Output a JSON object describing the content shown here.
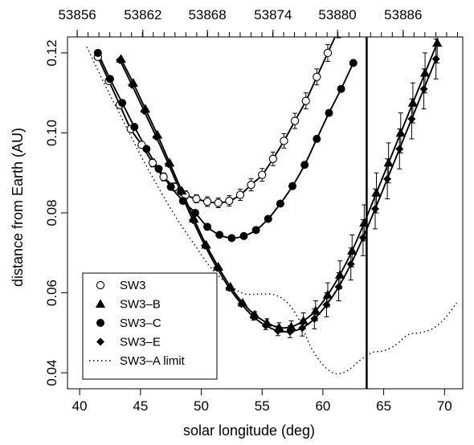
{
  "chart_data": {
    "type": "line",
    "xlabel": "solar longitude (deg)",
    "ylabel": "distance from Earth (AU)",
    "xlim": [
      39,
      71.5
    ],
    "ylim": [
      0.036,
      0.124
    ],
    "x_ticks": [
      40,
      45,
      50,
      55,
      60,
      65,
      70
    ],
    "y_ticks": [
      0.04,
      0.06,
      0.08,
      0.1,
      0.12
    ],
    "y_tick_labels": [
      "0.04",
      "0.06",
      "0.08",
      "0.10",
      "0.12"
    ],
    "top_axis": {
      "label_values": [
        53856,
        53862,
        53868,
        53874,
        53880,
        53886
      ],
      "labels": [
        "53856",
        "53862",
        "53868",
        "53874",
        "53880",
        "53886"
      ],
      "label_solar_longitudes": [
        39.8,
        45.2,
        50.5,
        55.9,
        61.2,
        66.6
      ]
    },
    "vertical_line_x": 63.6,
    "legend_position": "bottom-left",
    "series": [
      {
        "name": "SW3",
        "marker": "open-circle",
        "line": "solid",
        "x": [
          41.5,
          42.4,
          43.3,
          44.2,
          45.1,
          46.0,
          46.9,
          47.8,
          48.7,
          49.6,
          50.5,
          51.4,
          52.3,
          53.2,
          54.1,
          55.0,
          55.9,
          56.8,
          57.7,
          58.6,
          59.5,
          60.4,
          61.3
        ],
        "y": [
          0.119,
          0.113,
          0.107,
          0.101,
          0.097,
          0.0925,
          0.089,
          0.0865,
          0.0845,
          0.0835,
          0.0828,
          0.0825,
          0.083,
          0.0845,
          0.087,
          0.0895,
          0.0935,
          0.098,
          0.103,
          0.108,
          0.114,
          0.12,
          0.126
        ],
        "err": [
          0,
          0,
          0,
          0,
          0,
          0.001,
          0.001,
          0.001,
          0.001,
          0.001,
          0.0012,
          0.0012,
          0.0013,
          0.0014,
          0.0015,
          0.0016,
          0.0017,
          0.0018,
          0.0019,
          0.002,
          0.002,
          0.0021,
          0.0022
        ]
      },
      {
        "name": "SW3–B",
        "marker": "filled-triangle",
        "line": "solid",
        "x": [
          43.4,
          44.4,
          45.4,
          46.4,
          47.4,
          48.4,
          49.4,
          50.4,
          51.4,
          52.4,
          53.4,
          54.4,
          55.4,
          56.4,
          57.4,
          58.4,
          59.4,
          60.4,
          61.4,
          62.4,
          63.4,
          64.4,
          65.4,
          66.4,
          67.4,
          68.4,
          69.4
        ],
        "y": [
          0.1185,
          0.1125,
          0.106,
          0.0995,
          0.0925,
          0.0855,
          0.0785,
          0.072,
          0.0665,
          0.0615,
          0.0575,
          0.0545,
          0.0525,
          0.0513,
          0.0515,
          0.053,
          0.0555,
          0.0595,
          0.0645,
          0.0705,
          0.0775,
          0.085,
          0.0925,
          0.1,
          0.1075,
          0.115,
          0.1225
        ],
        "err": [
          0,
          0,
          0,
          0,
          0,
          0,
          0,
          0,
          0,
          0,
          0,
          0.0008,
          0.001,
          0.0012,
          0.0015,
          0.002,
          0.0025,
          0.003,
          0.0035,
          0.004,
          0.0045,
          0.005,
          0.005,
          0.005,
          0.005,
          0.005,
          0.005
        ]
      },
      {
        "name": "SW3–C",
        "marker": "filled-circle",
        "line": "solid",
        "x": [
          41.5,
          42.5,
          43.5,
          44.5,
          45.5,
          46.5,
          47.5,
          48.5,
          49.5,
          50.5,
          51.5,
          52.5,
          53.5,
          54.5,
          55.5,
          56.5,
          57.5,
          58.5,
          59.5,
          60.5,
          61.5,
          62.5
        ],
        "y": [
          0.12,
          0.1135,
          0.1075,
          0.1015,
          0.096,
          0.091,
          0.0865,
          0.083,
          0.08,
          0.0765,
          0.0745,
          0.0737,
          0.0742,
          0.0757,
          0.0785,
          0.0823,
          0.0867,
          0.092,
          0.0985,
          0.105,
          0.111,
          0.1175
        ],
        "err": []
      },
      {
        "name": "SW3–E",
        "marker": "filled-diamond",
        "line": "solid",
        "x": [
          43.3,
          44.3,
          45.3,
          46.3,
          47.3,
          48.3,
          49.3,
          50.3,
          51.3,
          52.3,
          53.3,
          54.3,
          55.3,
          56.3,
          57.3,
          58.3,
          59.3,
          60.3,
          61.3,
          62.3,
          63.3,
          64.3,
          65.3,
          66.3,
          67.3,
          68.3,
          69.3
        ],
        "y": [
          0.1182,
          0.112,
          0.1055,
          0.099,
          0.0922,
          0.0852,
          0.0782,
          0.0718,
          0.0662,
          0.0612,
          0.0572,
          0.054,
          0.0518,
          0.0505,
          0.0503,
          0.0512,
          0.0535,
          0.057,
          0.0615,
          0.0672,
          0.0738,
          0.081,
          0.0885,
          0.096,
          0.1035,
          0.111,
          0.1185
        ],
        "err": [
          0,
          0,
          0,
          0,
          0,
          0,
          0,
          0,
          0,
          0,
          0,
          0.0008,
          0.001,
          0.0012,
          0.0015,
          0.002,
          0.0025,
          0.003,
          0.0035,
          0.004,
          0.0045,
          0.005,
          0.005,
          0.005,
          0.005,
          0.005,
          0.005
        ]
      },
      {
        "name": "SW3–A limit",
        "marker": "none",
        "line": "dotted",
        "x": [
          40.6,
          42.0,
          43.5,
          45.0,
          46.5,
          48.0,
          49.5,
          51.0,
          52.5,
          53.5,
          54.2,
          55.0,
          56.0,
          57.0,
          58.0,
          59.0,
          60.0,
          61.0,
          62.0,
          63.0,
          64.0,
          65.0,
          66.0,
          67.0,
          68.0,
          69.0,
          70.0,
          71.0
        ],
        "y": [
          0.1215,
          0.1125,
          0.1035,
          0.0945,
          0.0862,
          0.0785,
          0.0718,
          0.0655,
          0.0615,
          0.0598,
          0.0596,
          0.0597,
          0.0595,
          0.0578,
          0.0535,
          0.0465,
          0.042,
          0.0398,
          0.0405,
          0.043,
          0.045,
          0.0455,
          0.047,
          0.0495,
          0.05,
          0.051,
          0.0535,
          0.0575
        ],
        "err": []
      }
    ]
  }
}
